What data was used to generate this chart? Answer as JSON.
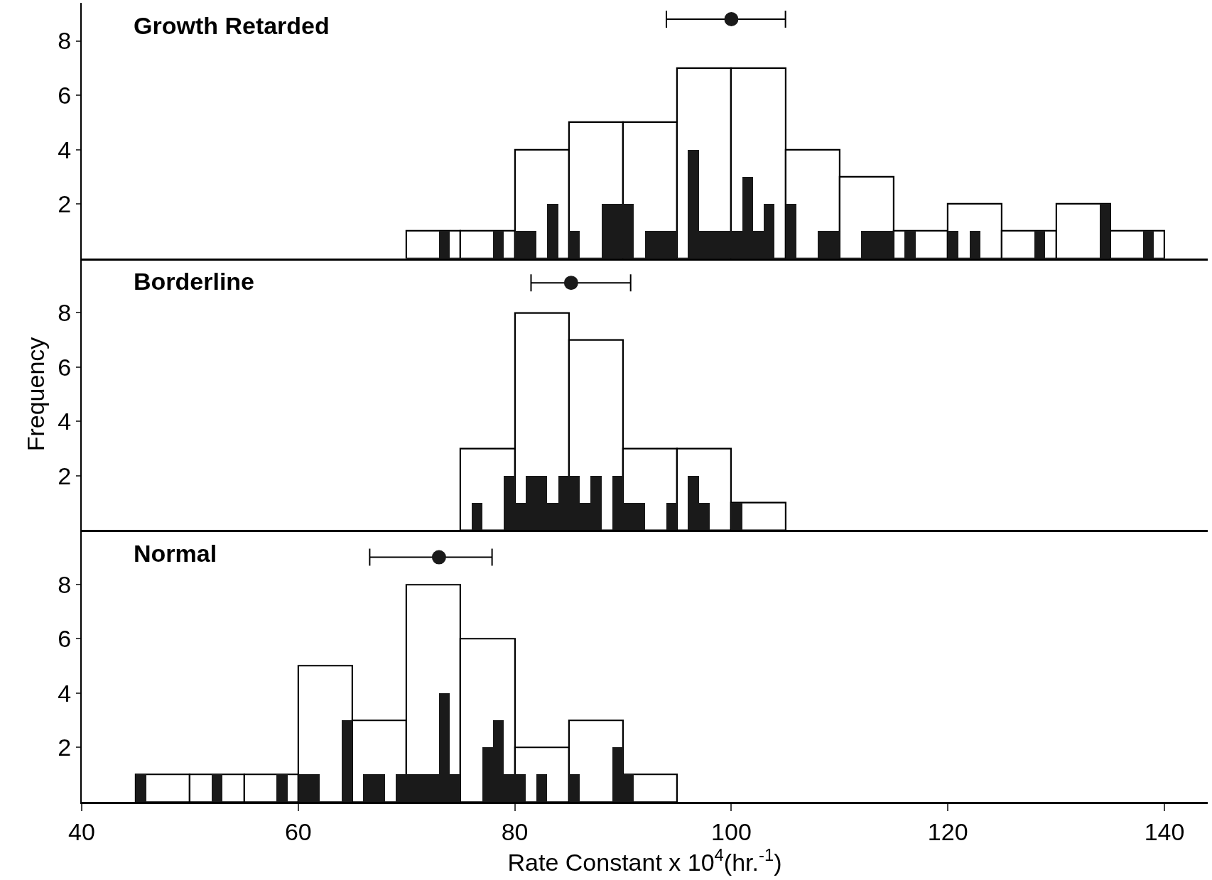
{
  "chart_data": [
    {
      "type": "histogram",
      "title": "Growth Retarded",
      "xlim": [
        40,
        144
      ],
      "ylim": [
        0,
        9.4
      ],
      "yticks": [
        2,
        4,
        6,
        8
      ],
      "tick_labels": "y",
      "series": [
        {
          "color": "#ffffff",
          "bins": [
            70,
            75,
            80,
            85,
            90,
            95,
            100,
            105,
            110,
            115,
            120,
            125,
            130,
            135,
            140
          ],
          "values": [
            1,
            1,
            4,
            5,
            5,
            7,
            7,
            4,
            3,
            1,
            2,
            1,
            2,
            1
          ]
        },
        {
          "color": "#1a1a1a",
          "bins": [
            73,
            74,
            75,
            76,
            77,
            78,
            79,
            80,
            81,
            82,
            83,
            84,
            85,
            86,
            87,
            88,
            89,
            90,
            91,
            92,
            93,
            94,
            95,
            96,
            97,
            98,
            99,
            100,
            101,
            102,
            103,
            104,
            105,
            106,
            107,
            108,
            109,
            110,
            111,
            112,
            113,
            114,
            115,
            116,
            117,
            118,
            119,
            120,
            121,
            122,
            123,
            124,
            125,
            126,
            127,
            128,
            129,
            130,
            131,
            132,
            133,
            134,
            135,
            136,
            137,
            138,
            139
          ],
          "values": [
            1,
            0,
            0,
            0,
            0,
            1,
            0,
            1,
            1,
            0,
            2,
            0,
            1,
            0,
            0,
            2,
            2,
            2,
            0,
            1,
            1,
            1,
            0,
            4,
            1,
            1,
            1,
            1,
            3,
            1,
            2,
            0,
            2,
            0,
            0,
            1,
            1,
            0,
            0,
            1,
            1,
            1,
            0,
            1,
            0,
            0,
            0,
            1,
            0,
            1,
            0,
            0,
            0,
            0,
            0,
            1,
            0,
            0,
            0,
            0,
            0,
            2,
            0,
            0,
            0,
            1
          ]
        },
        {
          "type": "scatter",
          "color": "#1a1a1a",
          "marker": "circle",
          "x": [
            100
          ],
          "values": [
            8.8
          ],
          "xerrors": [
            [
              94,
              105
            ]
          ]
        }
      ]
    },
    {
      "type": "histogram",
      "title": "Borderline",
      "ylabel": "Frequency",
      "xlim": [
        40,
        144
      ],
      "ylim": [
        0,
        10
      ],
      "yticks": [
        2,
        4,
        6,
        8
      ],
      "tick_labels": "y",
      "series": [
        {
          "color": "#ffffff",
          "bins": [
            75,
            80,
            85,
            90,
            95,
            100,
            105
          ],
          "values": [
            3,
            8,
            7,
            3,
            3,
            1
          ]
        },
        {
          "color": "#1a1a1a",
          "bins": [
            76,
            77,
            78,
            79,
            80,
            81,
            82,
            83,
            84,
            85,
            86,
            87,
            88,
            89,
            90,
            91,
            92,
            93,
            94,
            95,
            96,
            97,
            98,
            99,
            100,
            101
          ],
          "values": [
            1,
            0,
            0,
            2,
            1,
            2,
            2,
            1,
            2,
            2,
            1,
            2,
            0,
            2,
            1,
            1,
            0,
            0,
            1,
            0,
            2,
            1,
            0,
            0,
            1
          ]
        },
        {
          "type": "scatter",
          "color": "#1a1a1a",
          "marker": "circle",
          "x": [
            85.2
          ],
          "values": [
            9.1
          ],
          "xerrors": [
            [
              81.5,
              90.7
            ]
          ]
        }
      ]
    },
    {
      "type": "histogram",
      "title": "Normal",
      "xlabel": "Rate Constant x 10$^{4}$(hr.$^{-1}$)",
      "xlim": [
        40,
        144
      ],
      "ylim": [
        0,
        10
      ],
      "xticks": [
        40,
        60,
        80,
        100,
        120,
        140
      ],
      "yticks": [
        2,
        4,
        6,
        8
      ],
      "series": [
        {
          "color": "#ffffff",
          "bins": [
            45,
            50,
            55,
            60,
            65,
            70,
            75,
            80,
            85,
            90,
            95
          ],
          "values": [
            1,
            1,
            1,
            5,
            3,
            8,
            6,
            2,
            3,
            1
          ]
        },
        {
          "color": "#1a1a1a",
          "bins": [
            45,
            46,
            47,
            48,
            49,
            50,
            51,
            52,
            53,
            54,
            55,
            56,
            57,
            58,
            59,
            60,
            61,
            62,
            63,
            64,
            65,
            66,
            67,
            68,
            69,
            70,
            71,
            72,
            73,
            74,
            75,
            76,
            77,
            78,
            79,
            80,
            81,
            82,
            83,
            84,
            85,
            86,
            87,
            88,
            89,
            90,
            91
          ],
          "values": [
            1,
            0,
            0,
            0,
            0,
            0,
            0,
            1,
            0,
            0,
            0,
            0,
            0,
            1,
            0,
            1,
            1,
            0,
            0,
            3,
            0,
            1,
            1,
            0,
            1,
            1,
            1,
            1,
            4,
            1,
            0,
            0,
            2,
            3,
            1,
            1,
            0,
            1,
            0,
            0,
            1,
            0,
            0,
            0,
            2,
            1
          ]
        },
        {
          "type": "scatter",
          "color": "#1a1a1a",
          "marker": "circle",
          "x": [
            73
          ],
          "values": [
            9.0
          ],
          "xerrors": [
            [
              66.6,
              77.9
            ]
          ]
        }
      ]
    }
  ]
}
